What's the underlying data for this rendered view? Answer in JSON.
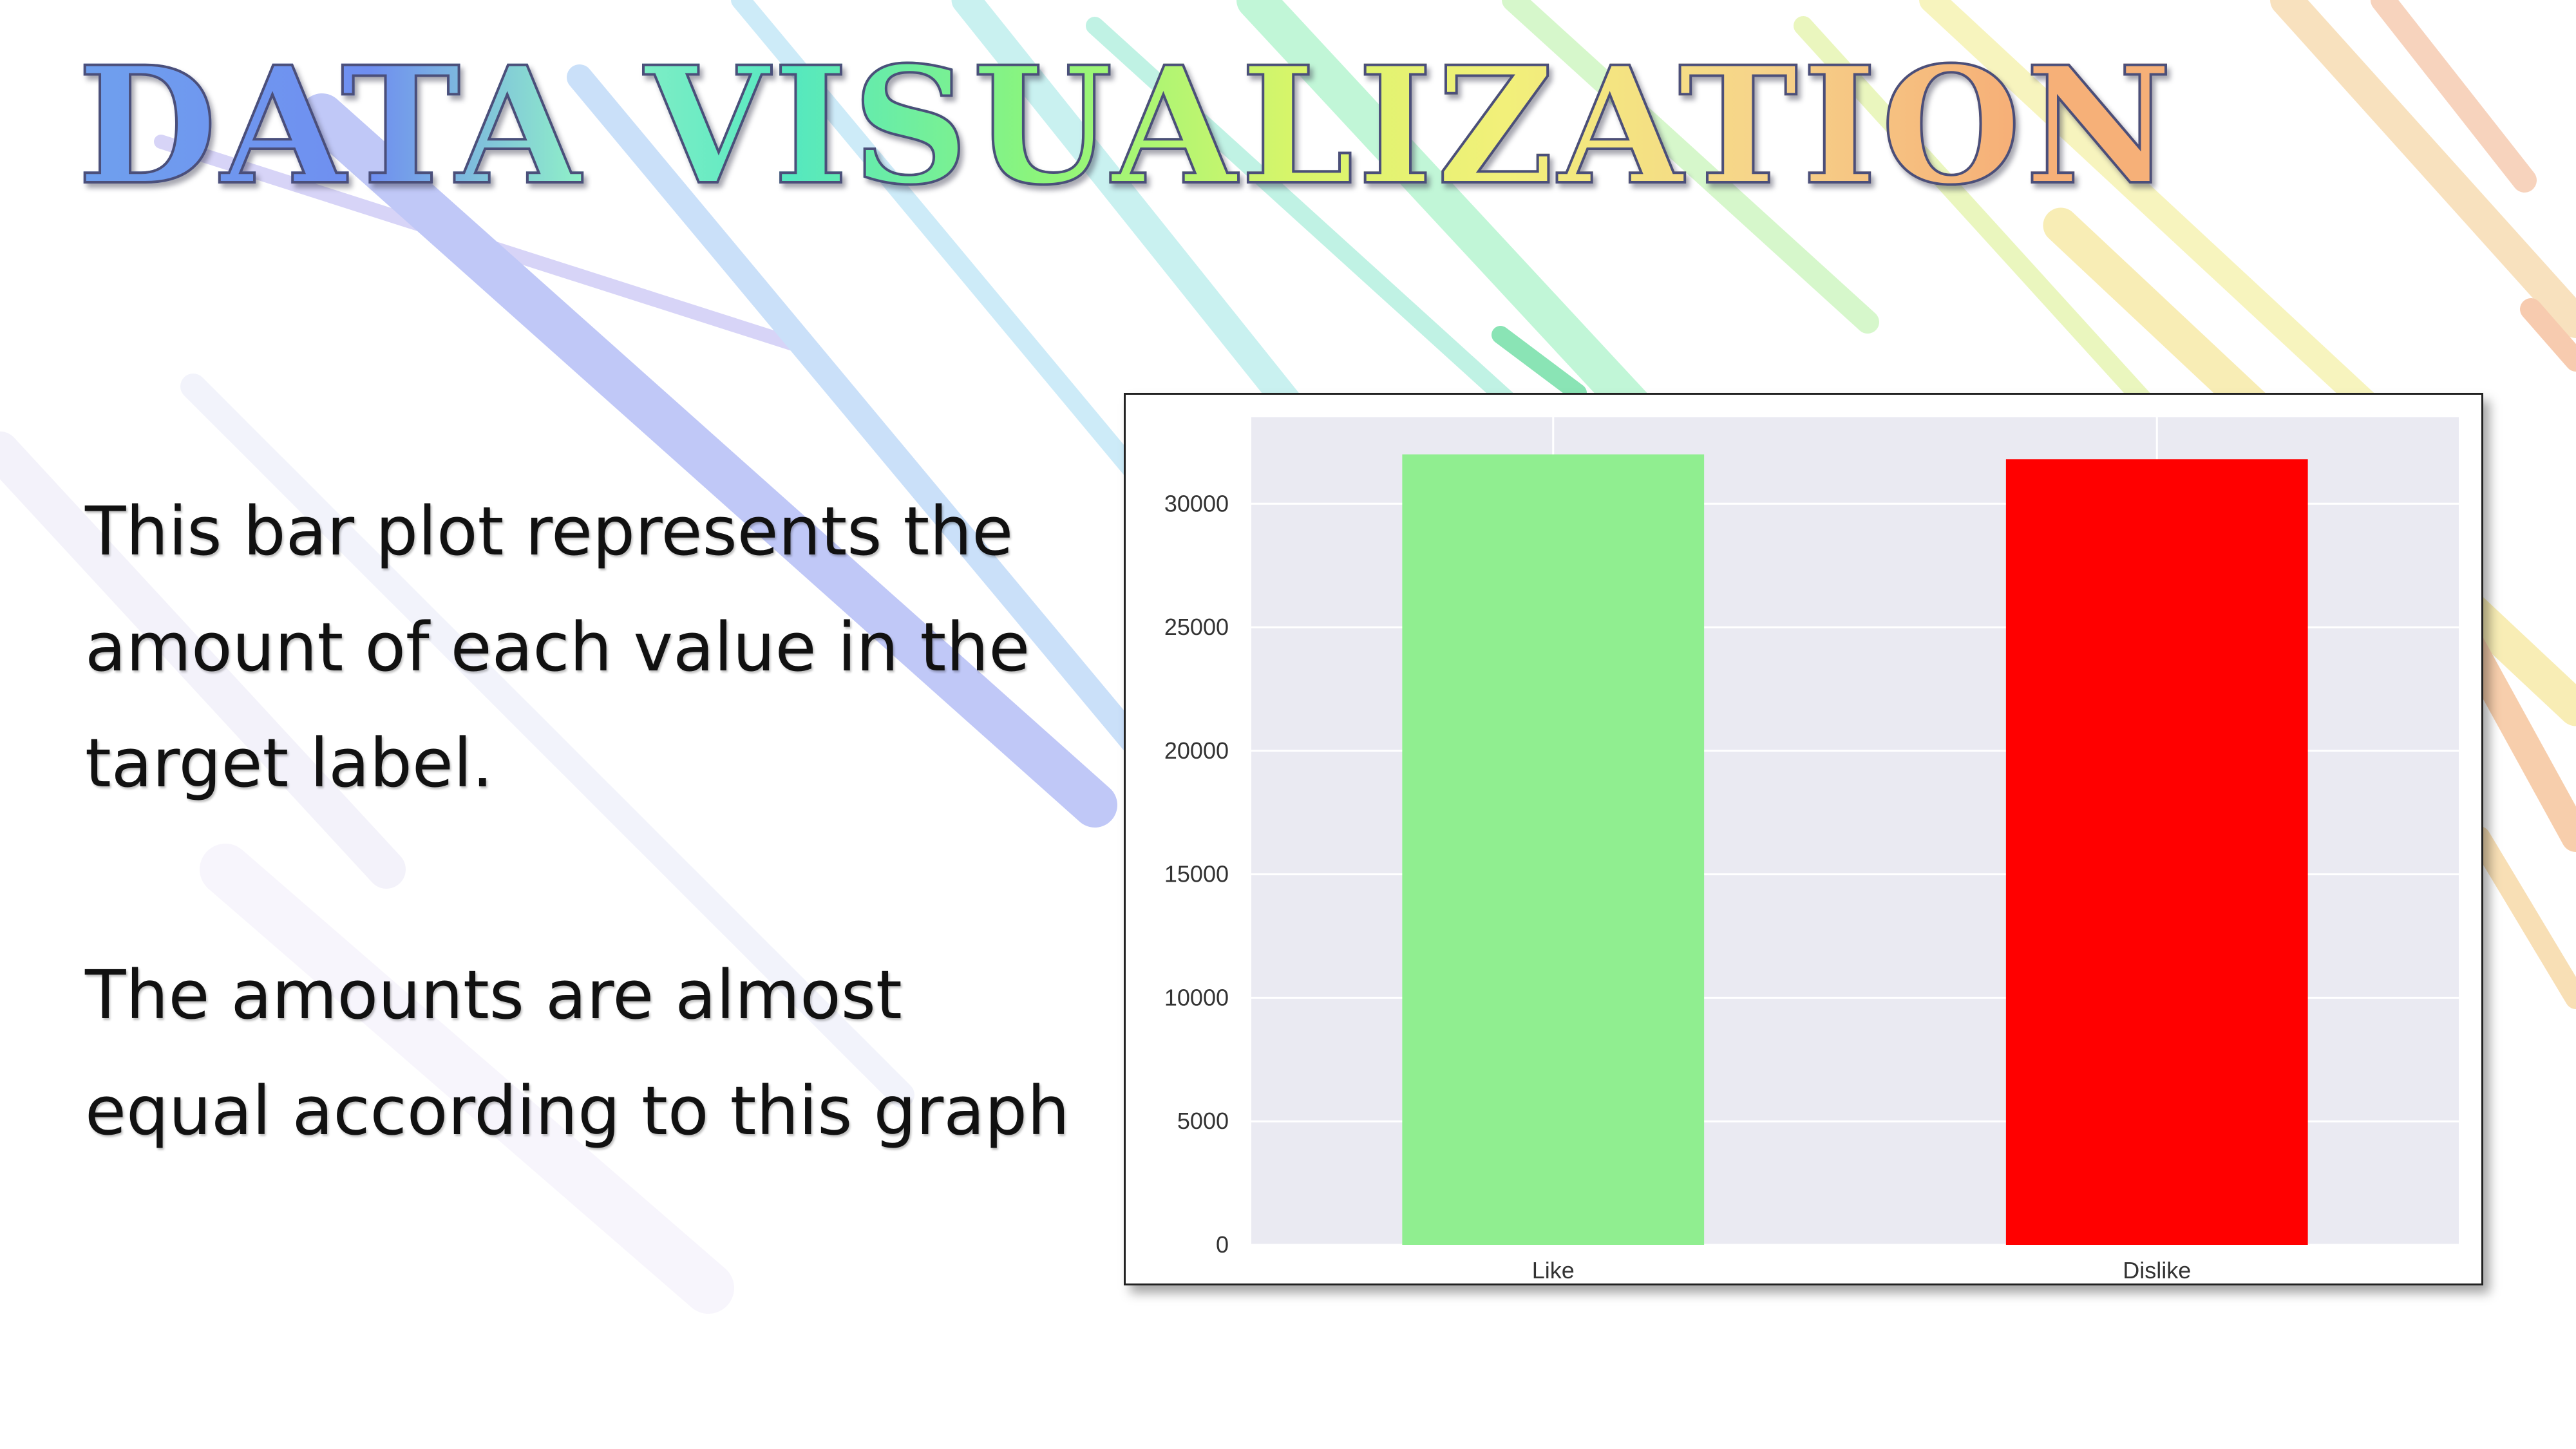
{
  "slide": {
    "title": "DATA VISUALIZATION",
    "paragraph1": [
      "This bar plot represents the",
      "amount of each value in the",
      "target label."
    ],
    "paragraph2": [
      "The amounts are almost",
      "equal according to this graph"
    ]
  },
  "colors": {
    "plot_background": "#eaeaf2",
    "grid": "#ffffff",
    "like_bar": "#90ee90",
    "dislike_bar": "#ff0000"
  },
  "chart_data": {
    "type": "bar",
    "categories": [
      "Like",
      "Dislike"
    ],
    "values": [
      32000,
      31800
    ],
    "colors": [
      "#90ee90",
      "#ff0000"
    ],
    "title": "",
    "xlabel": "",
    "ylabel": "",
    "ylim": [
      0,
      33500
    ],
    "yticks": [
      0,
      5000,
      10000,
      15000,
      20000,
      25000,
      30000
    ],
    "grid": true,
    "legend": "none"
  }
}
